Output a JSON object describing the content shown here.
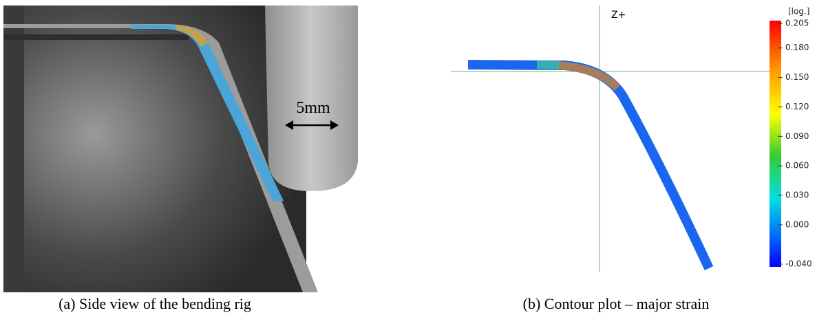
{
  "panels": [
    {
      "annotation": "5mm",
      "caption": "(a) Side view of the bending rig"
    },
    {
      "axis_label": "Z+",
      "caption": "(b) Contour plot – major strain",
      "colorbar": {
        "unit": "[log.]",
        "ticks": [
          0.205,
          {
            "value": 0.18,
            "label": "0.180"
          },
          {
            "value": 0.15,
            "label": "0.150"
          },
          {
            "value": 0.12,
            "label": "0.120"
          },
          {
            "value": 0.09,
            "label": "0.090"
          },
          {
            "value": 0.06,
            "label": "0.060"
          },
          {
            "value": 0.03,
            "label": "0.030"
          },
          {
            "value": 0,
            "label": "0.000"
          },
          {
            "value": -0.04,
            "label": "-0.040"
          }
        ]
      }
    }
  ]
}
